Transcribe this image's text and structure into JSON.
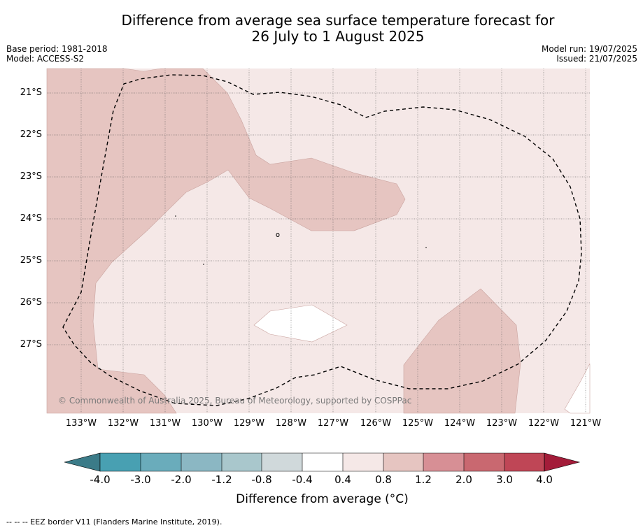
{
  "title": {
    "line1": "Difference from average sea surface temperature forecast for",
    "line2": "26 July to 1 August 2025"
  },
  "meta": {
    "base_period": "Base period: 1981-2018",
    "model": "Model: ACCESS-S2",
    "model_run": "Model run: 19/07/2025",
    "issued": "Issued: 21/07/2025"
  },
  "map": {
    "lat_labels": [
      "21°S",
      "22°S",
      "23°S",
      "24°S",
      "25°S",
      "26°S",
      "27°S"
    ],
    "lon_labels": [
      "133°W",
      "132°W",
      "131°W",
      "130°W",
      "129°W",
      "128°W",
      "127°W",
      "126°W",
      "125°W",
      "124°W",
      "123°W",
      "122°W",
      "121°W"
    ],
    "copyright": "© Commonwealth of Australia 2025, Bureau of Meteorology, supported by COSPPac",
    "colors": {
      "band_0_4_0_8": "#f5e8e7",
      "band_0_8_1_2": "#e6c5c1",
      "band_neg0_4_0_4": "#ffffff"
    }
  },
  "colorbar": {
    "ticks": [
      "-4.0",
      "-3.0",
      "-2.0",
      "-1.2",
      "-0.8",
      "-0.4",
      "0.4",
      "0.8",
      "1.2",
      "2.0",
      "3.0",
      "4.0"
    ],
    "colors": [
      "#3b7b88",
      "#48a0b2",
      "#6aacbb",
      "#8bb7c3",
      "#a9c7cc",
      "#d0d9db",
      "#ffffff",
      "#f5e8e7",
      "#e6c5c1",
      "#d78f95",
      "#c96870",
      "#bf4656",
      "#a31c39"
    ],
    "label": "Difference from average (°C)"
  },
  "footer": "--  --  -- EEZ border V11 (Flanders Marine Institute, 2019)."
}
